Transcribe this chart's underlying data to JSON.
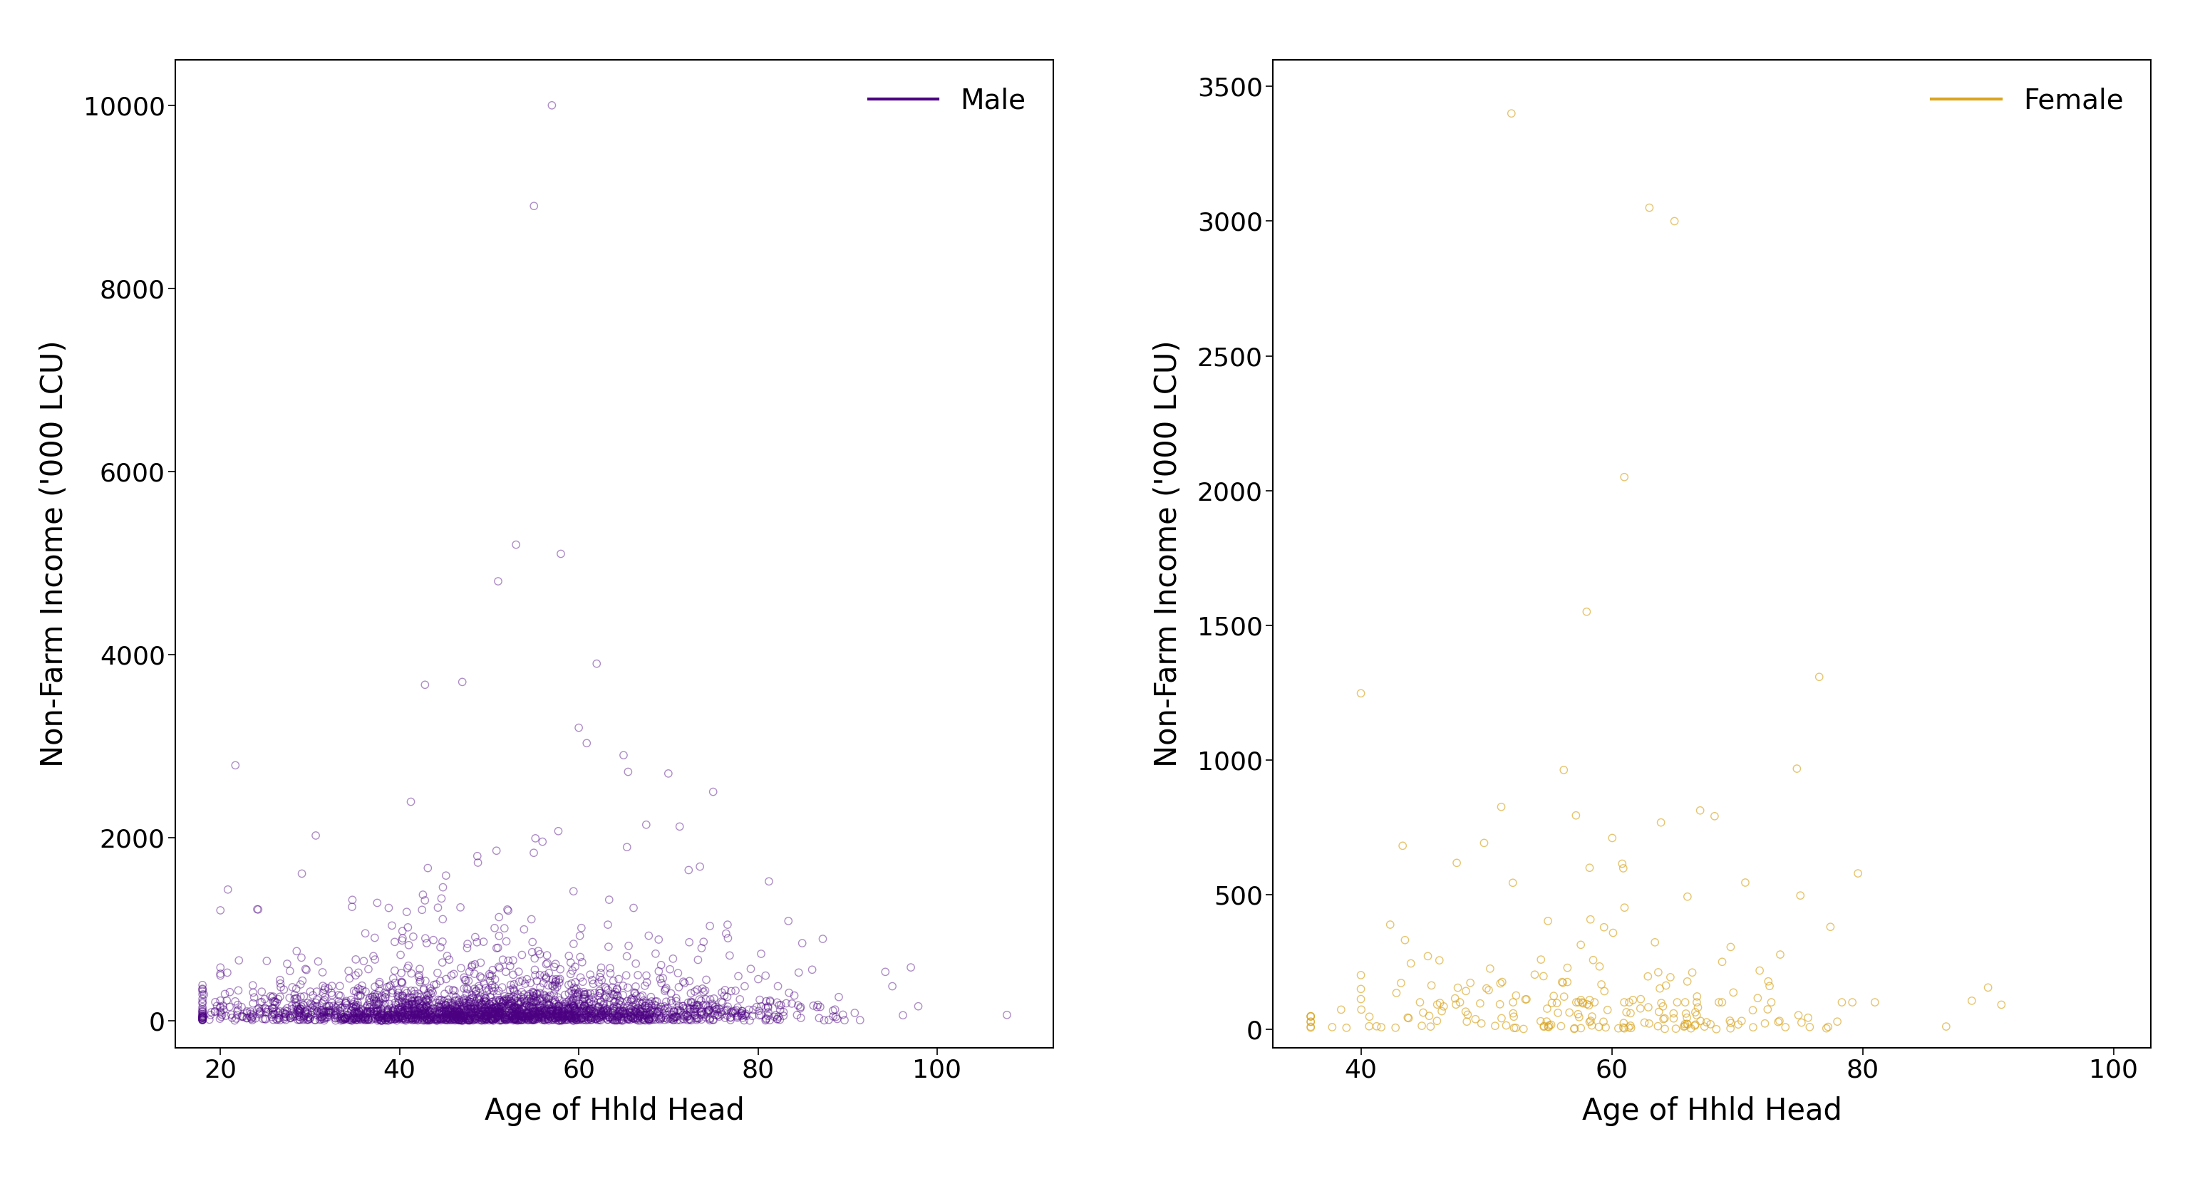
{
  "male_color": "#4B0082",
  "female_color": "#DAA520",
  "male_legend_label": "Male",
  "female_legend_label": "Female",
  "xlabel": "Age of Hhld Head",
  "ylabel": "Non-Farm Income ('000 LCU)",
  "male_xlim": [
    15,
    113
  ],
  "male_ylim": [
    -300,
    10500
  ],
  "female_xlim": [
    33,
    103
  ],
  "female_ylim": [
    -70,
    3600
  ],
  "male_xticks": [
    20,
    40,
    60,
    80,
    100
  ],
  "male_yticks": [
    0,
    2000,
    4000,
    6000,
    8000,
    10000
  ],
  "female_xticks": [
    40,
    60,
    80,
    100
  ],
  "female_yticks": [
    0,
    500,
    1000,
    1500,
    2000,
    2500,
    3000,
    3500
  ],
  "marker_size": 55,
  "marker_linewidth": 1.0,
  "male_alpha": 0.45,
  "female_alpha": 0.65,
  "background_color": "#FFFFFF",
  "axis_linewidth": 1.5,
  "tick_fontsize": 26,
  "label_fontsize": 30,
  "legend_fontsize": 28,
  "seed": 42
}
